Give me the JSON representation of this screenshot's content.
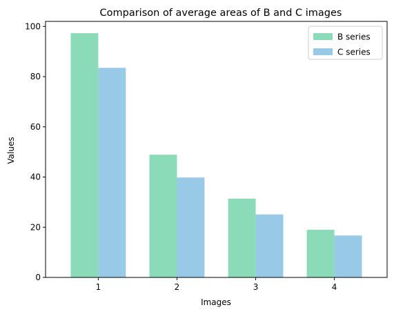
{
  "chart_data": {
    "type": "bar",
    "title": "Comparison of average areas of B and C images",
    "xlabel": "Images",
    "ylabel": "Values",
    "categories": [
      "1",
      "2",
      "3",
      "4"
    ],
    "ylim": [
      0,
      102
    ],
    "yticks": [
      0,
      20,
      40,
      60,
      80,
      100
    ],
    "grid": false,
    "legend_position": "top-right",
    "series": [
      {
        "name": "B series",
        "color": "#8CDBB8",
        "values": [
          97.3,
          48.9,
          31.4,
          19.0
        ]
      },
      {
        "name": "C series",
        "color": "#98CAE8",
        "values": [
          83.5,
          39.8,
          25.1,
          16.7
        ]
      }
    ]
  }
}
